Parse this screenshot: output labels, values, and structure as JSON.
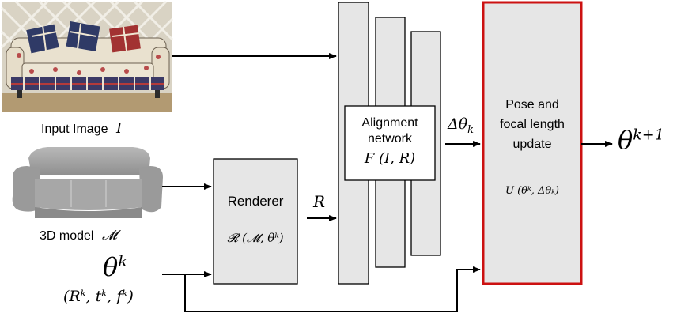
{
  "inputs": {
    "image_label": "Input Image",
    "image_symbol": "I",
    "model_label": "3D model",
    "model_symbol": "𝓜",
    "theta_k": "θ",
    "theta_k_sup": "k",
    "theta_tuple": "(Rᵏ, tᵏ, fᵏ)"
  },
  "renderer": {
    "title": "Renderer",
    "formula": "𝓡 (𝓜, θᵏ)",
    "output_symbol": "R"
  },
  "alignment": {
    "title_line1": "Alignment",
    "title_line2": "network",
    "formula": "F (I, R)",
    "output_symbol": "Δθ",
    "output_sub": "k"
  },
  "update": {
    "title_line1": "Pose and",
    "title_line2": "focal length",
    "title_line3": "update",
    "formula": "U (θᵏ, Δθₖ)",
    "output_symbol": "θ",
    "output_sup": "k+1"
  },
  "colors": {
    "box_fill": "#e6e6e6",
    "box_stroke": "#000000",
    "highlight_stroke": "#cc1111"
  }
}
